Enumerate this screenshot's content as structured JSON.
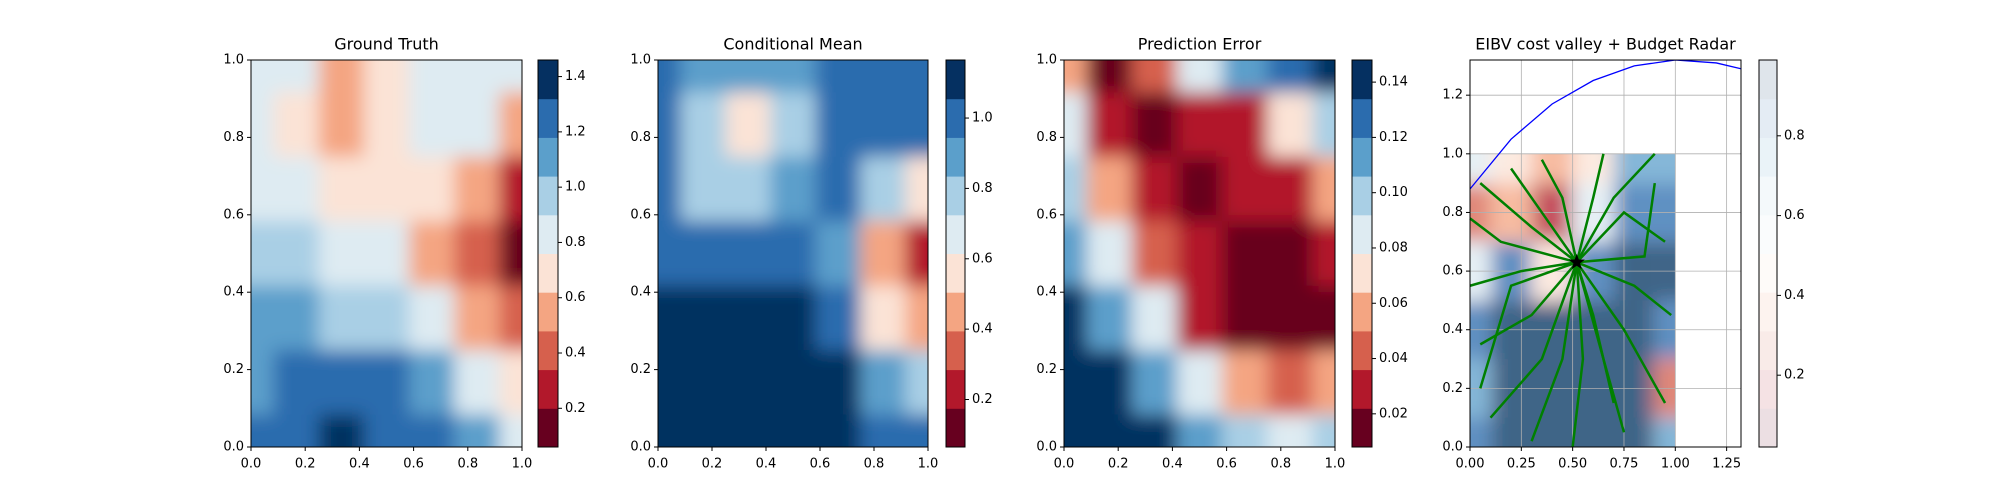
{
  "chart_data": [
    {
      "type": "contour",
      "title": "Ground Truth",
      "xlim": [
        0,
        1
      ],
      "ylim": [
        0,
        1
      ],
      "xticks": [
        {
          "value": 0,
          "label": "0.0"
        },
        0.2,
        0.4,
        0.6,
        0.8,
        {
          "value": 1,
          "label": "1.0"
        }
      ],
      "yticks": [
        {
          "value": 0,
          "label": "0.0"
        },
        0.2,
        0.4,
        0.6,
        0.8,
        {
          "value": 1,
          "label": "1.0"
        }
      ],
      "field": {
        "x": [
          0,
          0.167,
          0.333,
          0.5,
          0.667,
          0.833,
          1
        ],
        "y": [
          1,
          0.833,
          0.667,
          0.5,
          0.333,
          0.167,
          0
        ],
        "z": [
          [
            0.9,
            0.8,
            0.6,
            0.7,
            0.9,
            0.9,
            0.85
          ],
          [
            0.85,
            0.75,
            0.55,
            0.7,
            0.85,
            0.8,
            0.6
          ],
          [
            0.9,
            0.8,
            0.7,
            0.75,
            0.75,
            0.5,
            0.3
          ],
          [
            1.0,
            0.95,
            0.85,
            0.8,
            0.6,
            0.35,
            0.1
          ],
          [
            1.1,
            1.05,
            1.0,
            0.95,
            0.8,
            0.5,
            0.35
          ],
          [
            1.15,
            1.2,
            1.2,
            1.2,
            1.05,
            0.85,
            0.75
          ],
          [
            1.2,
            1.3,
            1.4,
            1.25,
            1.2,
            1.05,
            0.9
          ]
        ]
      },
      "levels": [
        0.06,
        0.2,
        0.34,
        0.48,
        0.62,
        0.76,
        0.9,
        1.04,
        1.18,
        1.32,
        1.46
      ],
      "colors": [
        "#67001f",
        "#b2182b",
        "#d6604d",
        "#f4a582",
        "#fbe3d6",
        "#deebf2",
        "#a9cfe5",
        "#5b9fcb",
        "#2b6cae",
        "#053061"
      ],
      "cbar_ticks": [
        0.2,
        0.4,
        0.6,
        0.8,
        {
          "value": 1.0,
          "label": "1.0"
        },
        1.2,
        1.4
      ]
    },
    {
      "type": "contour",
      "title": "Conditional Mean",
      "xlim": [
        0,
        1
      ],
      "ylim": [
        0,
        1
      ],
      "xticks": [
        {
          "value": 0,
          "label": "0.0"
        },
        0.2,
        0.4,
        0.6,
        0.8,
        {
          "value": 1,
          "label": "1.0"
        }
      ],
      "yticks": [
        {
          "value": 0,
          "label": "0.0"
        },
        0.2,
        0.4,
        0.6,
        0.8,
        {
          "value": 1,
          "label": "1.0"
        }
      ],
      "field": {
        "x": [
          0,
          0.167,
          0.333,
          0.5,
          0.667,
          0.833,
          1
        ],
        "y": [
          1,
          0.833,
          0.667,
          0.5,
          0.333,
          0.167,
          0
        ],
        "z": [
          [
            1.0,
            0.9,
            0.85,
            0.9,
            1.0,
            1.05,
            1.05
          ],
          [
            0.95,
            0.75,
            0.6,
            0.75,
            0.95,
            1.0,
            0.95
          ],
          [
            0.95,
            0.8,
            0.75,
            0.85,
            0.95,
            0.8,
            0.6
          ],
          [
            1.05,
            1.0,
            1.0,
            1.0,
            0.85,
            0.5,
            0.2
          ],
          [
            1.1,
            1.15,
            1.15,
            1.1,
            0.95,
            0.6,
            0.45
          ],
          [
            1.15,
            1.2,
            1.2,
            1.2,
            1.1,
            0.9,
            0.8
          ],
          [
            1.15,
            1.2,
            1.2,
            1.2,
            1.15,
            1.05,
            0.95
          ]
        ]
      },
      "levels": [
        0.065,
        0.175,
        0.285,
        0.395,
        0.505,
        0.615,
        0.725,
        0.835,
        0.945,
        1.055,
        1.165
      ],
      "colors": [
        "#67001f",
        "#b2182b",
        "#d6604d",
        "#f4a582",
        "#fbe3d6",
        "#deebf2",
        "#a9cfe5",
        "#5b9fcb",
        "#2b6cae",
        "#053061"
      ],
      "cbar_ticks": [
        0.2,
        0.4,
        0.6,
        0.8,
        {
          "value": 1.0,
          "label": "1.0"
        }
      ]
    },
    {
      "type": "contour",
      "title": "Prediction Error",
      "xlim": [
        0,
        1
      ],
      "ylim": [
        0,
        1
      ],
      "xticks": [
        {
          "value": 0,
          "label": "0.0"
        },
        0.2,
        0.4,
        0.6,
        0.8,
        {
          "value": 1,
          "label": "1.0"
        }
      ],
      "yticks": [
        {
          "value": 0,
          "label": "0.0"
        },
        0.2,
        0.4,
        0.6,
        0.8,
        {
          "value": 1,
          "label": "1.0"
        }
      ],
      "field": {
        "x": [
          0,
          0.167,
          0.333,
          0.5,
          0.667,
          0.833,
          1
        ],
        "y": [
          1,
          0.833,
          0.667,
          0.5,
          0.333,
          0.167,
          0
        ],
        "z": [
          [
            0.06,
            0.02,
            0.05,
            0.09,
            0.12,
            0.13,
            0.14
          ],
          [
            0.08,
            0.03,
            0.02,
            0.03,
            0.03,
            0.07,
            0.1
          ],
          [
            0.1,
            0.06,
            0.03,
            0.02,
            0.03,
            0.03,
            0.06
          ],
          [
            0.12,
            0.09,
            0.05,
            0.03,
            0.01,
            0.01,
            0.03
          ],
          [
            0.14,
            0.12,
            0.08,
            0.03,
            0.02,
            0.02,
            0.02
          ],
          [
            0.145,
            0.14,
            0.12,
            0.09,
            0.06,
            0.05,
            0.06
          ],
          [
            0.145,
            0.145,
            0.14,
            0.12,
            0.1,
            0.09,
            0.1
          ]
        ]
      },
      "levels": [
        0.008,
        0.022,
        0.036,
        0.05,
        0.064,
        0.078,
        0.092,
        0.106,
        0.12,
        0.134,
        0.148
      ],
      "colors": [
        "#67001f",
        "#b2182b",
        "#d6604d",
        "#f4a582",
        "#fbe3d6",
        "#deebf2",
        "#a9cfe5",
        "#5b9fcb",
        "#2b6cae",
        "#053061"
      ],
      "cbar_ticks": [
        0.02,
        0.04,
        0.06,
        0.08,
        {
          "value": 0.1,
          "label": "0.10"
        },
        0.12,
        0.14
      ]
    },
    {
      "type": "contour",
      "title": "EIBV cost valley + Budget Radar",
      "xlim": [
        0,
        1.32
      ],
      "ylim": [
        0,
        1.32
      ],
      "grid": true,
      "xticks": [
        {
          "value": 0,
          "label": "0.00"
        },
        0.25,
        {
          "value": 0.5,
          "label": "0.50"
        },
        0.75,
        {
          "value": 1,
          "label": "1.00"
        },
        1.25
      ],
      "yticks": [
        {
          "value": 0,
          "label": "0.0"
        },
        0.2,
        0.4,
        0.6,
        0.8,
        {
          "value": 1,
          "label": "1.0"
        },
        1.2
      ],
      "field": {
        "x": [
          0,
          0.2,
          0.4,
          0.6,
          0.8,
          1
        ],
        "y": [
          1,
          0.8,
          0.6,
          0.4,
          0.2,
          0
        ],
        "z": [
          [
            0.6,
            0.5,
            0.4,
            0.5,
            0.7,
            0.7
          ],
          [
            0.3,
            0.4,
            0.2,
            0.6,
            0.8,
            0.8
          ],
          [
            0.6,
            0.8,
            0.5,
            0.85,
            0.9,
            0.9
          ],
          [
            0.8,
            0.9,
            0.9,
            0.95,
            0.95,
            0.8
          ],
          [
            0.75,
            0.9,
            0.95,
            0.95,
            0.9,
            0.3
          ],
          [
            0.8,
            0.9,
            0.95,
            0.95,
            0.9,
            0.7
          ]
        ]
      },
      "levels": [
        0.02,
        0.117,
        0.214,
        0.311,
        0.408,
        0.505,
        0.602,
        0.699,
        0.796,
        0.893,
        0.99
      ],
      "colors": [
        "#67001f",
        "#b2182b",
        "#d6604d",
        "#f4a582",
        "#fbe3d6",
        "#deebf2",
        "#a9cfe5",
        "#5b9fcb",
        "#2b6cae",
        "#053061"
      ],
      "field_alpha": 0.75,
      "colorbar_alpha": 0.12,
      "cbar_ticks": [
        0.2,
        0.4,
        0.6,
        0.8
      ],
      "arc": {
        "color": "blue",
        "x": [
          0,
          0.2,
          0.4,
          0.6,
          0.8,
          1.0,
          1.2,
          1.32
        ],
        "y": [
          0.88,
          1.05,
          1.17,
          1.25,
          1.3,
          1.32,
          1.31,
          1.29
        ]
      },
      "path_color": "#008000",
      "paths": [
        {
          "x": [
            0.52,
            0.3,
            0.05
          ],
          "y": [
            0.63,
            0.75,
            0.9
          ]
        },
        {
          "x": [
            0.52,
            0.25,
            0.0
          ],
          "y": [
            0.63,
            0.6,
            0.55
          ]
        },
        {
          "x": [
            0.52,
            0.3,
            0.05
          ],
          "y": [
            0.63,
            0.45,
            0.35
          ]
        },
        {
          "x": [
            0.52,
            0.35,
            0.1
          ],
          "y": [
            0.63,
            0.3,
            0.1
          ]
        },
        {
          "x": [
            0.52,
            0.45,
            0.3
          ],
          "y": [
            0.63,
            0.3,
            0.02
          ]
        },
        {
          "x": [
            0.52,
            0.55,
            0.5
          ],
          "y": [
            0.63,
            0.3,
            0.0
          ]
        },
        {
          "x": [
            0.52,
            0.65,
            0.75
          ],
          "y": [
            0.63,
            0.3,
            0.05
          ]
        },
        {
          "x": [
            0.52,
            0.75,
            0.95
          ],
          "y": [
            0.63,
            0.4,
            0.15
          ]
        },
        {
          "x": [
            0.52,
            0.8,
            0.98
          ],
          "y": [
            0.63,
            0.55,
            0.45
          ]
        },
        {
          "x": [
            0.52,
            0.75,
            0.95
          ],
          "y": [
            0.63,
            0.8,
            0.7
          ]
        },
        {
          "x": [
            0.52,
            0.7,
            0.9
          ],
          "y": [
            0.63,
            0.85,
            1.0
          ]
        },
        {
          "x": [
            0.52,
            0.6,
            0.65
          ],
          "y": [
            0.63,
            0.85,
            1.0
          ]
        },
        {
          "x": [
            0.52,
            0.45,
            0.35
          ],
          "y": [
            0.63,
            0.85,
            0.98
          ]
        },
        {
          "x": [
            0.52,
            0.3,
            0.2
          ],
          "y": [
            0.63,
            0.85,
            0.95
          ]
        },
        {
          "x": [
            0.52,
            0.15,
            0.0
          ],
          "y": [
            0.63,
            0.7,
            0.78
          ]
        },
        {
          "x": [
            0.52,
            0.2,
            0.05
          ],
          "y": [
            0.63,
            0.55,
            0.2
          ]
        },
        {
          "x": [
            0.52,
            0.85,
            0.9
          ],
          "y": [
            0.63,
            0.65,
            0.9
          ]
        },
        {
          "x": [
            0.52,
            0.6,
            0.7
          ],
          "y": [
            0.63,
            0.45,
            0.15
          ]
        }
      ],
      "star": {
        "x": 0.52,
        "y": 0.63
      }
    }
  ]
}
